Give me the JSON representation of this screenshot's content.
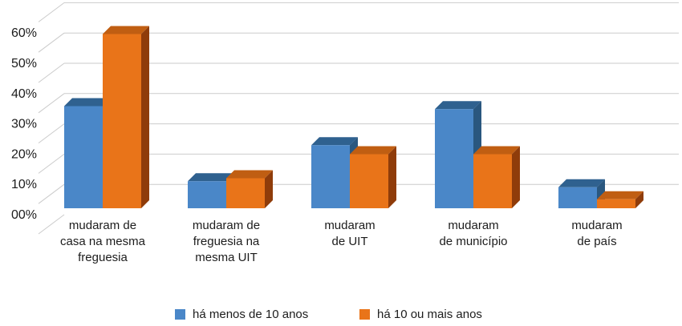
{
  "chart_data": {
    "type": "bar",
    "style": "3d-clustered-column",
    "title": "",
    "xlabel": "",
    "ylabel": "",
    "values_unit": "%",
    "categories": [
      "mudaram de casa na mesma freguesia",
      "mudaram de freguesia na mesma UIT",
      "mudaram de UIT",
      "mudaram de município",
      "mudaram de país"
    ],
    "category_lines": [
      [
        "mudaram de",
        "casa na mesma",
        "freguesia"
      ],
      [
        "mudaram de",
        "freguesia na",
        "mesma UIT"
      ],
      [
        "mudaram",
        "de UIT"
      ],
      [
        "mudaram",
        "de município"
      ],
      [
        "mudaram",
        "de país"
      ]
    ],
    "series": [
      {
        "key": "ha-menos-de-10-anos",
        "name": "há menos de 10 anos",
        "values": [
          34,
          9,
          21,
          33,
          7
        ],
        "colors": {
          "front": "#4A87C8",
          "top": "#2F618F",
          "side": "#2A577F"
        }
      },
      {
        "key": "ha-10-ou-mais-anos",
        "name": "há 10 ou mais anos",
        "values": [
          58,
          10,
          18,
          18,
          3
        ],
        "colors": {
          "front": "#E97419",
          "top": "#C05E12",
          "side": "#8F3C0A"
        }
      }
    ],
    "ylim": [
      0,
      70
    ],
    "ytick_step": 10,
    "ytick_labels": [
      "00%",
      "10%",
      "20%",
      "30%",
      "40%",
      "50%",
      "60%"
    ],
    "grid": true,
    "grid_color": "#CBCBCB",
    "legend_position": "bottom"
  },
  "text_color": "#1C1C1C",
  "background": "#FFFFFF"
}
